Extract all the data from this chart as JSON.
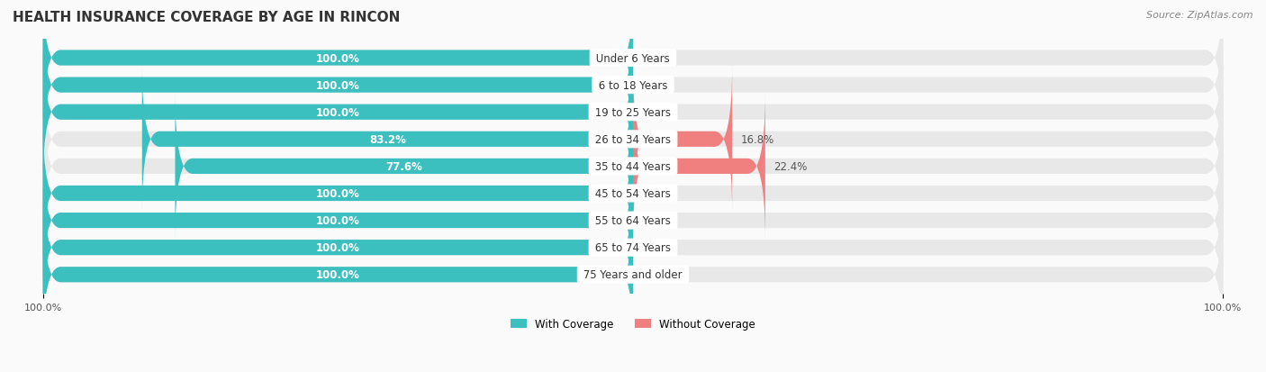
{
  "title": "HEALTH INSURANCE COVERAGE BY AGE IN RINCON",
  "source": "Source: ZipAtlas.com",
  "categories": [
    "Under 6 Years",
    "6 to 18 Years",
    "19 to 25 Years",
    "26 to 34 Years",
    "35 to 44 Years",
    "45 to 54 Years",
    "55 to 64 Years",
    "65 to 74 Years",
    "75 Years and older"
  ],
  "with_coverage": [
    100.0,
    100.0,
    100.0,
    83.2,
    77.6,
    100.0,
    100.0,
    100.0,
    100.0
  ],
  "without_coverage": [
    0.0,
    0.0,
    0.0,
    16.8,
    22.4,
    0.0,
    0.0,
    0.0,
    0.0
  ],
  "color_with": "#3BBFBF",
  "color_without": "#F08080",
  "color_bg_bar": "#F0F0F0",
  "color_bg_figure": "#FAFAFA",
  "bar_height": 0.55,
  "title_fontsize": 11,
  "label_fontsize": 8.5,
  "tick_fontsize": 8,
  "source_fontsize": 8
}
